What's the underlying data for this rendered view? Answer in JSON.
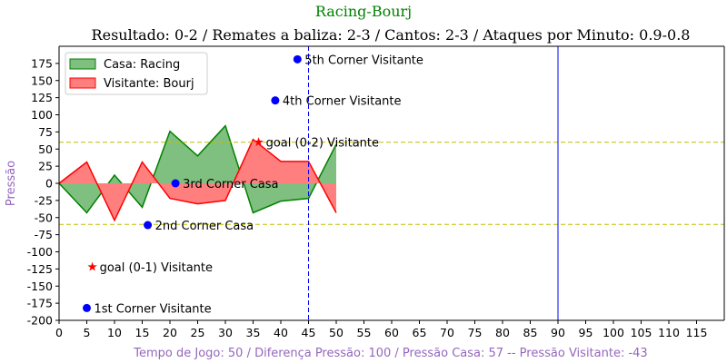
{
  "chart_data": {
    "type": "area",
    "suptitle": "Racing-Bourj",
    "title": "Resultado: 0-2 / Remates a baliza: 2-3 / Cantos: 2-3 / Ataques por Minuto: 0.9-0.8",
    "xlabel": "Tempo de Jogo: 50 / Diferença Pressão: 100 / Pressão Casa: 57 -- Pressão Visitante: -43",
    "ylabel": "Pressão",
    "xlim": [
      0,
      120
    ],
    "ylim": [
      -200,
      200
    ],
    "x_ticks": [
      "0",
      "5",
      "10",
      "15",
      "20",
      "25",
      "30",
      "35",
      "40",
      "45",
      "50",
      "55",
      "60",
      "65",
      "70",
      "75",
      "80",
      "85",
      "90",
      "95",
      "100",
      "105",
      "110",
      "115"
    ],
    "y_ticks": [
      "-200",
      "-175",
      "-150",
      "-125",
      "-100",
      "-75",
      "-50",
      "-25",
      "0",
      "25",
      "50",
      "75",
      "100",
      "125",
      "150",
      "175"
    ],
    "x": [
      0,
      5,
      10,
      15,
      20,
      25,
      30,
      35,
      40,
      45,
      50
    ],
    "series": [
      {
        "name": "Casa: Racing",
        "values": [
          0,
          -43,
          12,
          -35,
          76,
          40,
          84,
          -43,
          -26,
          -22,
          57
        ],
        "color": "#008000",
        "fill": "#7fbf7f"
      },
      {
        "name": "Visitante: Bourj",
        "values": [
          0,
          31,
          -54,
          31,
          -22,
          -30,
          -25,
          64,
          32,
          32,
          -43
        ],
        "color": "#ff0000",
        "fill": "#ff7f7f"
      }
    ],
    "hlines": [
      {
        "y": 60,
        "color": "#bfbf00",
        "style": "dashed"
      },
      {
        "y": -60,
        "color": "#bfbf00",
        "style": "dashed"
      }
    ],
    "vlines": [
      {
        "x": 45,
        "color": "#0000ff",
        "style": "dashed"
      },
      {
        "x": 90,
        "color": "#0000ff",
        "style": "solid"
      }
    ],
    "events": [
      {
        "x": 5,
        "y": -182,
        "marker": "circle",
        "color": "#0000ff",
        "label": "1st Corner Visitante"
      },
      {
        "x": 16,
        "y": -61,
        "marker": "circle",
        "color": "#0000ff",
        "label": "2nd Corner Casa"
      },
      {
        "x": 21,
        "y": 0,
        "marker": "circle",
        "color": "#0000ff",
        "label": "3rd Corner Casa"
      },
      {
        "x": 39,
        "y": 121,
        "marker": "circle",
        "color": "#0000ff",
        "label": "4th Corner Visitante"
      },
      {
        "x": 43,
        "y": 181,
        "marker": "circle",
        "color": "#0000ff",
        "label": "5th Corner Visitante"
      },
      {
        "x": 6,
        "y": -122,
        "marker": "star",
        "color": "#ff0000",
        "label": "goal (0-1) Visitante"
      },
      {
        "x": 36,
        "y": 60,
        "marker": "star",
        "color": "#ff0000",
        "label": "goal (0-2) Visitante"
      }
    ],
    "legend": "top-left",
    "grid": false
  }
}
